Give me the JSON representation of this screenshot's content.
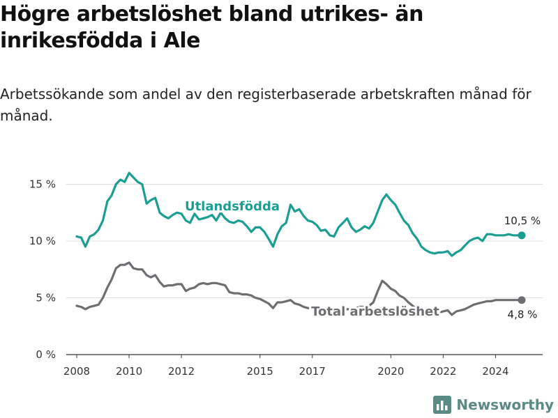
{
  "title": "Högre arbetslöshet bland utrikes- än inrikesfödda i Ale",
  "subtitle": "Arbetssökande som andel av den registerbaserade arbetskraften månad för månad.",
  "brand": "Newsworthy",
  "colors": {
    "foreign_born": "#1a9e94",
    "total": "#6e6e72",
    "grid": "#dddddd",
    "axis": "#333333",
    "brand": "#5a8a86"
  },
  "chart_data": {
    "type": "line",
    "xlabel": "",
    "ylabel": "",
    "xlim": [
      2007.6,
      2025.8
    ],
    "ylim": [
      0,
      16.5
    ],
    "x_ticks": [
      2008,
      2010,
      2012,
      2015,
      2017,
      2020,
      2022,
      2024
    ],
    "x_tick_labels": [
      "2008",
      "2010",
      "2012",
      "2015",
      "2017",
      "2020",
      "2022",
      "2024"
    ],
    "y_ticks": [
      0,
      5,
      10,
      15
    ],
    "y_tick_labels": [
      "0 %",
      "5 %",
      "10 %",
      "15 %"
    ],
    "grid": true,
    "series": [
      {
        "name": "Utlandsfödda",
        "end_label": "10,5 %",
        "x": [
          2008.0,
          2008.17,
          2008.33,
          2008.5,
          2008.67,
          2008.83,
          2009.0,
          2009.17,
          2009.33,
          2009.5,
          2009.67,
          2009.83,
          2010.0,
          2010.17,
          2010.33,
          2010.5,
          2010.67,
          2010.83,
          2011.0,
          2011.17,
          2011.33,
          2011.5,
          2011.67,
          2011.83,
          2012.0,
          2012.17,
          2012.33,
          2012.5,
          2012.67,
          2012.83,
          2013.0,
          2013.17,
          2013.33,
          2013.5,
          2013.67,
          2013.83,
          2014.0,
          2014.17,
          2014.33,
          2014.5,
          2014.67,
          2014.83,
          2015.0,
          2015.17,
          2015.33,
          2015.5,
          2015.67,
          2015.83,
          2016.0,
          2016.17,
          2016.33,
          2016.5,
          2016.67,
          2016.83,
          2017.0,
          2017.17,
          2017.33,
          2017.5,
          2017.67,
          2017.83,
          2018.0,
          2018.17,
          2018.33,
          2018.5,
          2018.67,
          2018.83,
          2019.0,
          2019.17,
          2019.33,
          2019.5,
          2019.67,
          2019.83,
          2020.0,
          2020.17,
          2020.33,
          2020.5,
          2020.67,
          2020.83,
          2021.0,
          2021.17,
          2021.33,
          2021.5,
          2021.67,
          2021.83,
          2022.0,
          2022.17,
          2022.33,
          2022.5,
          2022.67,
          2022.83,
          2023.0,
          2023.17,
          2023.33,
          2023.5,
          2023.67,
          2023.83,
          2024.0,
          2024.17,
          2024.33,
          2024.5,
          2024.67,
          2024.83,
          2025.0
        ],
        "y": [
          10.4,
          10.3,
          9.5,
          10.4,
          10.6,
          11.0,
          11.8,
          13.5,
          14.0,
          15.0,
          15.4,
          15.2,
          16.0,
          15.6,
          15.2,
          15.0,
          13.3,
          13.6,
          13.8,
          12.5,
          12.2,
          12.0,
          12.3,
          12.5,
          12.4,
          11.8,
          11.6,
          12.4,
          11.9,
          12.0,
          12.1,
          12.3,
          11.8,
          12.5,
          12.0,
          11.7,
          11.6,
          11.8,
          11.7,
          11.3,
          10.8,
          11.2,
          11.2,
          10.8,
          10.2,
          9.5,
          10.6,
          11.3,
          11.6,
          13.2,
          12.6,
          12.8,
          12.2,
          11.8,
          11.7,
          11.4,
          10.9,
          11.0,
          10.5,
          10.4,
          11.2,
          11.6,
          12.0,
          11.2,
          10.8,
          11.0,
          11.3,
          11.1,
          11.6,
          12.6,
          13.6,
          14.1,
          13.6,
          13.2,
          12.5,
          11.8,
          11.4,
          10.7,
          10.2,
          9.5,
          9.2,
          9.0,
          8.9,
          9.0,
          9.0,
          9.1,
          8.7,
          9.0,
          9.2,
          9.6,
          10.0,
          10.2,
          10.3,
          10.0,
          10.6,
          10.6,
          10.5,
          10.5,
          10.5,
          10.6,
          10.5,
          10.5,
          10.5
        ]
      },
      {
        "name": "Total arbetslöshet",
        "end_label": "4,8 %",
        "x": [
          2008.0,
          2008.17,
          2008.33,
          2008.5,
          2008.67,
          2008.83,
          2009.0,
          2009.17,
          2009.33,
          2009.5,
          2009.67,
          2009.83,
          2010.0,
          2010.17,
          2010.33,
          2010.5,
          2010.67,
          2010.83,
          2011.0,
          2011.17,
          2011.33,
          2011.5,
          2011.67,
          2011.83,
          2012.0,
          2012.17,
          2012.33,
          2012.5,
          2012.67,
          2012.83,
          2013.0,
          2013.17,
          2013.33,
          2013.5,
          2013.67,
          2013.83,
          2014.0,
          2014.17,
          2014.33,
          2014.5,
          2014.67,
          2014.83,
          2015.0,
          2015.17,
          2015.33,
          2015.5,
          2015.67,
          2015.83,
          2016.0,
          2016.17,
          2016.33,
          2016.5,
          2016.67,
          2016.83,
          2017.0,
          2017.17,
          2017.33,
          2017.5,
          2017.67,
          2017.83,
          2018.0,
          2018.17,
          2018.33,
          2018.5,
          2018.67,
          2018.83,
          2019.0,
          2019.17,
          2019.33,
          2019.5,
          2019.67,
          2019.83,
          2020.0,
          2020.17,
          2020.33,
          2020.5,
          2020.67,
          2020.83,
          2021.0,
          2021.17,
          2021.33,
          2021.5,
          2021.67,
          2021.83,
          2022.0,
          2022.17,
          2022.33,
          2022.5,
          2022.67,
          2022.83,
          2023.0,
          2023.17,
          2023.33,
          2023.5,
          2023.67,
          2023.83,
          2024.0,
          2024.17,
          2024.33,
          2024.5,
          2024.67,
          2024.83,
          2025.0
        ],
        "y": [
          4.3,
          4.2,
          4.0,
          4.2,
          4.3,
          4.4,
          5.0,
          5.9,
          6.6,
          7.6,
          7.9,
          7.9,
          8.1,
          7.6,
          7.5,
          7.5,
          7.0,
          6.8,
          7.0,
          6.4,
          6.0,
          6.1,
          6.1,
          6.2,
          6.2,
          5.6,
          5.8,
          5.9,
          6.2,
          6.3,
          6.2,
          6.3,
          6.3,
          6.2,
          6.1,
          5.5,
          5.4,
          5.4,
          5.3,
          5.3,
          5.2,
          5.0,
          4.9,
          4.7,
          4.5,
          4.1,
          4.6,
          4.6,
          4.7,
          4.8,
          4.5,
          4.4,
          4.2,
          4.1,
          4.1,
          4.0,
          3.9,
          3.9,
          3.8,
          3.8,
          3.9,
          3.9,
          4.0,
          4.0,
          4.1,
          4.2,
          4.2,
          4.3,
          4.6,
          5.6,
          6.5,
          6.2,
          5.8,
          5.6,
          5.2,
          5.0,
          4.6,
          4.3,
          4.0,
          3.9,
          3.8,
          3.8,
          3.8,
          3.7,
          3.8,
          3.9,
          3.5,
          3.8,
          3.9,
          4.0,
          4.2,
          4.4,
          4.5,
          4.6,
          4.7,
          4.7,
          4.8,
          4.8,
          4.8,
          4.8,
          4.8,
          4.8,
          4.8
        ]
      }
    ]
  }
}
